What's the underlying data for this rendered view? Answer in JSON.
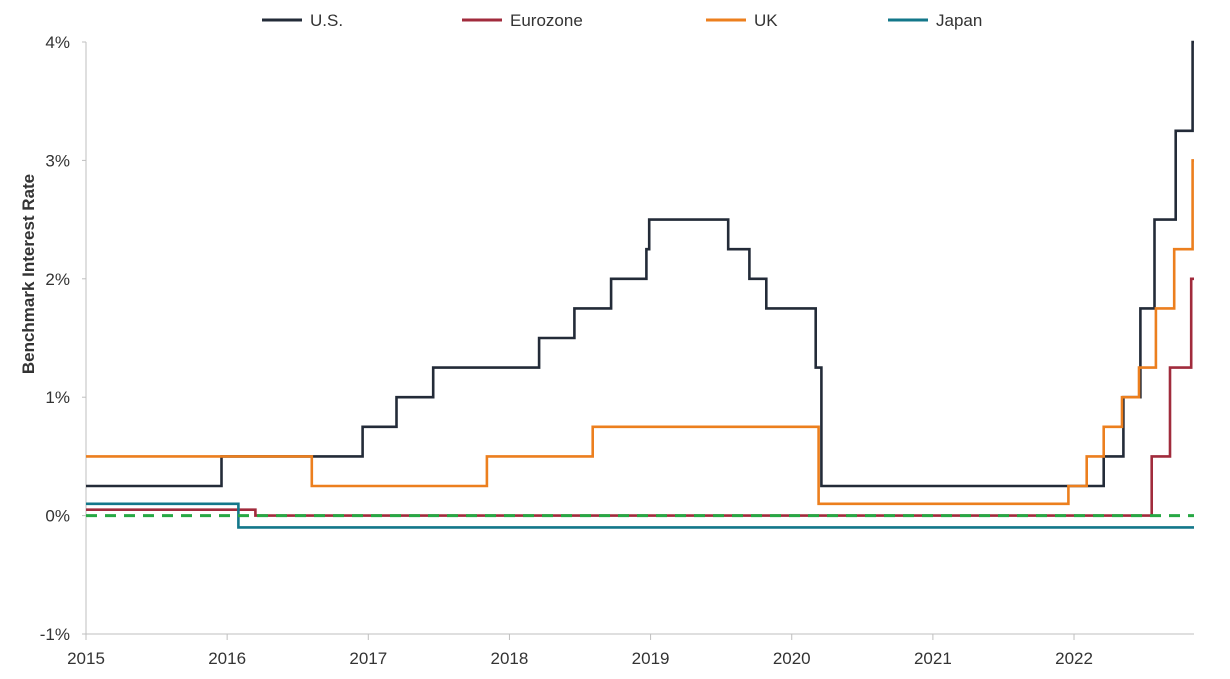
{
  "chart_data": {
    "type": "line",
    "title": "",
    "xlabel": "",
    "ylabel": "Benchmark Interest Rate",
    "xlim": [
      2015.0,
      2022.85
    ],
    "ylim": [
      -1,
      4
    ],
    "x_ticks": [
      "2015",
      "2016",
      "2017",
      "2018",
      "2019",
      "2020",
      "2021",
      "2022"
    ],
    "y_ticks": [
      "-1%",
      "0%",
      "1%",
      "2%",
      "3%",
      "4%"
    ],
    "y_tick_values": [
      -1,
      0,
      1,
      2,
      3,
      4
    ],
    "legend_position": "top",
    "grid": false,
    "series": [
      {
        "name": "U.S.",
        "color": "#232b38",
        "step": true,
        "points": [
          [
            2015.0,
            0.25
          ],
          [
            2015.96,
            0.5
          ],
          [
            2016.96,
            0.75
          ],
          [
            2017.2,
            1.0
          ],
          [
            2017.46,
            1.25
          ],
          [
            2018.21,
            1.5
          ],
          [
            2018.46,
            1.75
          ],
          [
            2018.72,
            2.0
          ],
          [
            2018.97,
            2.25
          ],
          [
            2018.99,
            2.5
          ],
          [
            2019.55,
            2.25
          ],
          [
            2019.7,
            2.0
          ],
          [
            2019.82,
            1.75
          ],
          [
            2020.17,
            1.25
          ],
          [
            2020.21,
            0.25
          ],
          [
            2022.21,
            0.5
          ],
          [
            2022.35,
            1.0
          ],
          [
            2022.47,
            1.75
          ],
          [
            2022.57,
            2.5
          ],
          [
            2022.72,
            3.25
          ],
          [
            2022.84,
            4.0
          ],
          [
            2022.85,
            4.0
          ]
        ]
      },
      {
        "name": "Eurozone",
        "color": "#a12b3c",
        "step": true,
        "points": [
          [
            2015.0,
            0.05
          ],
          [
            2016.2,
            0.0
          ],
          [
            2022.55,
            0.5
          ],
          [
            2022.68,
            1.25
          ],
          [
            2022.83,
            2.0
          ],
          [
            2022.85,
            2.0
          ]
        ]
      },
      {
        "name": "UK",
        "color": "#ec7f1e",
        "step": true,
        "points": [
          [
            2015.0,
            0.5
          ],
          [
            2016.6,
            0.25
          ],
          [
            2017.84,
            0.5
          ],
          [
            2018.59,
            0.75
          ],
          [
            2020.19,
            0.1
          ],
          [
            2021.96,
            0.25
          ],
          [
            2022.09,
            0.5
          ],
          [
            2022.21,
            0.75
          ],
          [
            2022.34,
            1.0
          ],
          [
            2022.46,
            1.25
          ],
          [
            2022.58,
            1.75
          ],
          [
            2022.71,
            2.25
          ],
          [
            2022.84,
            3.0
          ],
          [
            2022.85,
            3.0
          ]
        ]
      },
      {
        "name": "Japan",
        "color": "#13778a",
        "step": true,
        "points": [
          [
            2015.0,
            0.1
          ],
          [
            2016.08,
            -0.1
          ],
          [
            2022.85,
            -0.1
          ]
        ]
      },
      {
        "name": "",
        "color": "#27a844",
        "dashed": true,
        "step": false,
        "points": [
          [
            2015.0,
            0.0
          ],
          [
            2022.85,
            0.0
          ]
        ]
      }
    ]
  }
}
